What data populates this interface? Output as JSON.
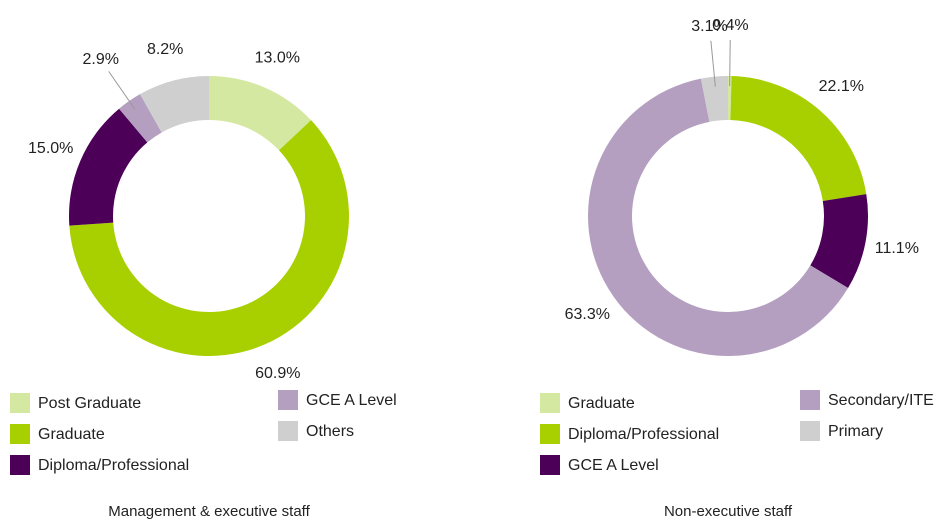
{
  "chart_data": [
    {
      "type": "donut",
      "title": "Management & executive staff",
      "categories": [
        "Post Graduate",
        "Graduate",
        "Diploma/Professional",
        "GCE A Level",
        "Others"
      ],
      "values": [
        13.0,
        60.9,
        15.0,
        2.9,
        8.2
      ],
      "value_labels": [
        "13.0%",
        "60.9%",
        "15.0%",
        "2.9%",
        "8.2%"
      ],
      "colors": [
        "#d5e8a2",
        "#a8d000",
        "#4d0058",
        "#b49fc0",
        "#cfcfcf"
      ]
    },
    {
      "type": "donut",
      "title": "Non-executive staff",
      "categories": [
        "Graduate",
        "Diploma/Professional",
        "GCE A Level",
        "Secondary/ITE",
        "Primary"
      ],
      "values": [
        0.4,
        22.1,
        11.1,
        63.3,
        3.1
      ],
      "value_labels": [
        "0.4%",
        "22.1%",
        "11.1%",
        "63.3%",
        "3.1%"
      ],
      "colors": [
        "#d5e8a2",
        "#a8d000",
        "#4d0058",
        "#b49fc0",
        "#cfcfcf"
      ]
    }
  ]
}
